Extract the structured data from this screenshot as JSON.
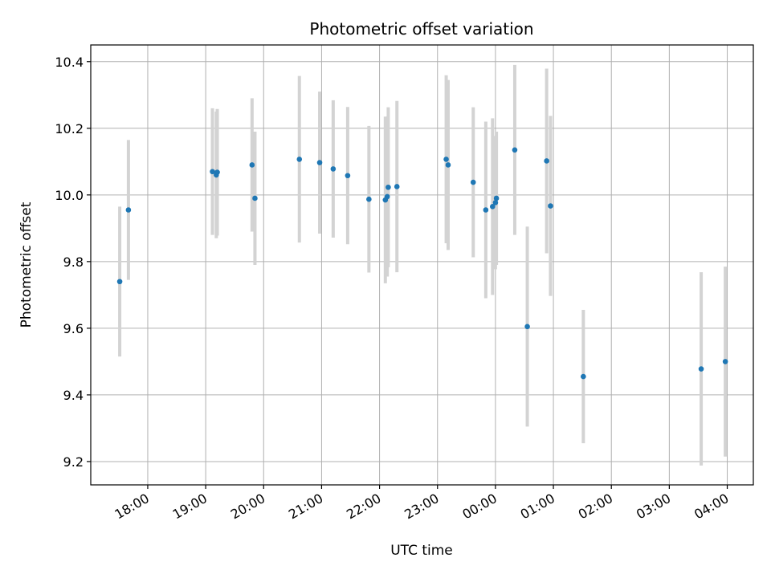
{
  "chart_data": {
    "type": "scatter",
    "title": "Photometric offset variation",
    "xlabel": "UTC time",
    "ylabel": "Photometric offset",
    "xlim": [
      "2024-01-01T17:01:00",
      "2024-01-02T04:27:00"
    ],
    "ylim": [
      9.13,
      10.45
    ],
    "x_ticks": [
      {
        "t": "2024-01-01T18:00:00",
        "label": "18:00"
      },
      {
        "t": "2024-01-01T19:00:00",
        "label": "19:00"
      },
      {
        "t": "2024-01-01T20:00:00",
        "label": "20:00"
      },
      {
        "t": "2024-01-01T21:00:00",
        "label": "21:00"
      },
      {
        "t": "2024-01-01T22:00:00",
        "label": "22:00"
      },
      {
        "t": "2024-01-01T23:00:00",
        "label": "23:00"
      },
      {
        "t": "2024-01-02T00:00:00",
        "label": "00:00"
      },
      {
        "t": "2024-01-02T01:00:00",
        "label": "01:00"
      },
      {
        "t": "2024-01-02T02:00:00",
        "label": "02:00"
      },
      {
        "t": "2024-01-02T03:00:00",
        "label": "03:00"
      },
      {
        "t": "2024-01-02T04:00:00",
        "label": "04:00"
      }
    ],
    "y_ticks": [
      {
        "v": 9.2,
        "label": "9.2"
      },
      {
        "v": 9.4,
        "label": "9.4"
      },
      {
        "v": 9.6,
        "label": "9.6"
      },
      {
        "v": 9.8,
        "label": "9.8"
      },
      {
        "v": 10.0,
        "label": "10.0"
      },
      {
        "v": 10.2,
        "label": "10.2"
      },
      {
        "v": 10.4,
        "label": "10.4"
      }
    ],
    "grid": true,
    "colors": {
      "point": "#1f77b4",
      "errorbar": "#d3d3d3"
    },
    "points": [
      {
        "t": "2024-01-01T17:31:00",
        "y": 9.74,
        "err": 0.225
      },
      {
        "t": "2024-01-01T17:40:00",
        "y": 9.955,
        "err": 0.21
      },
      {
        "t": "2024-01-01T19:07:00",
        "y": 10.07,
        "err": 0.19
      },
      {
        "t": "2024-01-01T19:11:00",
        "y": 10.06,
        "err": 0.19
      },
      {
        "t": "2024-01-01T19:12:00",
        "y": 10.068,
        "err": 0.19
      },
      {
        "t": "2024-01-01T19:48:00",
        "y": 10.09,
        "err": 0.2
      },
      {
        "t": "2024-01-01T19:51:00",
        "y": 9.99,
        "err": 0.2
      },
      {
        "t": "2024-01-01T20:37:00",
        "y": 10.107,
        "err": 0.25
      },
      {
        "t": "2024-01-01T20:58:00",
        "y": 10.097,
        "err": 0.213
      },
      {
        "t": "2024-01-01T21:12:00",
        "y": 10.078,
        "err": 0.206
      },
      {
        "t": "2024-01-01T21:27:00",
        "y": 10.058,
        "err": 0.206
      },
      {
        "t": "2024-01-01T21:49:00",
        "y": 9.987,
        "err": 0.22
      },
      {
        "t": "2024-01-01T22:06:00",
        "y": 9.985,
        "err": 0.25
      },
      {
        "t": "2024-01-01T22:08:00",
        "y": 9.995,
        "err": 0.24
      },
      {
        "t": "2024-01-01T22:09:00",
        "y": 10.023,
        "err": 0.24
      },
      {
        "t": "2024-01-01T22:18:00",
        "y": 10.025,
        "err": 0.257
      },
      {
        "t": "2024-01-01T23:09:00",
        "y": 10.107,
        "err": 0.252
      },
      {
        "t": "2024-01-01T23:11:00",
        "y": 10.09,
        "err": 0.255
      },
      {
        "t": "2024-01-01T23:37:00",
        "y": 10.038,
        "err": 0.225
      },
      {
        "t": "2024-01-01T23:50:00",
        "y": 9.955,
        "err": 0.265
      },
      {
        "t": "2024-01-01T23:57:00",
        "y": 9.965,
        "err": 0.265
      },
      {
        "t": "2024-01-02T00:00:00",
        "y": 9.977,
        "err": 0.2
      },
      {
        "t": "2024-01-02T00:01:00",
        "y": 9.99,
        "err": 0.2
      },
      {
        "t": "2024-01-02T00:20:00",
        "y": 10.135,
        "err": 0.255
      },
      {
        "t": "2024-01-02T00:33:00",
        "y": 9.605,
        "err": 0.3
      },
      {
        "t": "2024-01-02T00:53:00",
        "y": 10.102,
        "err": 0.277
      },
      {
        "t": "2024-01-02T00:57:00",
        "y": 9.967,
        "err": 0.27
      },
      {
        "t": "2024-01-02T01:31:00",
        "y": 9.455,
        "err": 0.2
      },
      {
        "t": "2024-01-02T03:33:00",
        "y": 9.478,
        "err": 0.29
      },
      {
        "t": "2024-01-02T03:58:00",
        "y": 9.5,
        "err": 0.285
      }
    ]
  }
}
